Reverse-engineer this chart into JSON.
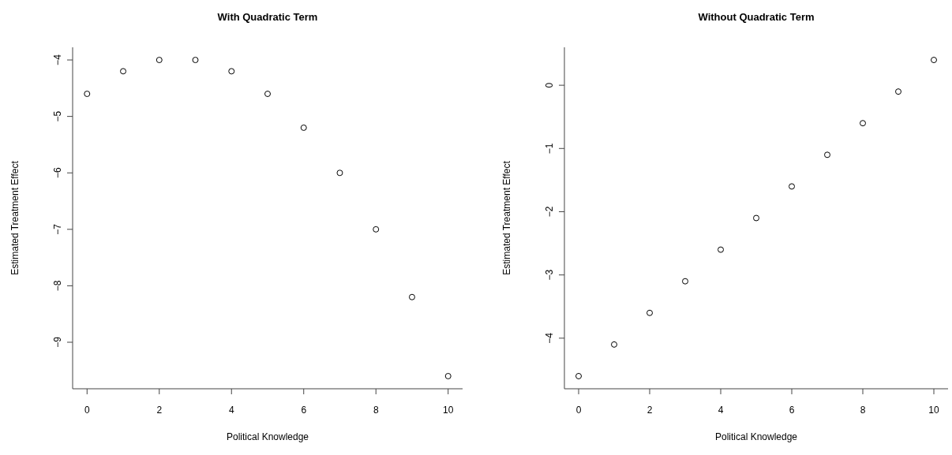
{
  "chart_data": [
    {
      "type": "scatter",
      "title": "With Quadratic Term",
      "xlabel": "Political Knowledge",
      "ylabel": "Estimated Treatment Effect",
      "x": [
        0,
        1,
        2,
        3,
        4,
        5,
        6,
        7,
        8,
        9,
        10
      ],
      "values": [
        -4.6,
        -4.2,
        -4.0,
        -4.0,
        -4.2,
        -4.6,
        -5.2,
        -6.0,
        -7.0,
        -8.2,
        -9.6
      ],
      "color": "#000000",
      "marker": "circle",
      "xlim": [
        -0.4,
        10.4
      ],
      "ylim": [
        -9.824,
        -3.776
      ],
      "xticks": [
        0,
        2,
        4,
        6,
        8,
        10
      ],
      "yticks": [
        -9,
        -8,
        -7,
        -6,
        -5,
        -4
      ]
    },
    {
      "type": "scatter",
      "title": "Without Quadratic Term",
      "xlabel": "Political Knowledge",
      "ylabel": "Estimated Treatment Effect",
      "x": [
        0,
        1,
        2,
        3,
        4,
        5,
        6,
        7,
        8,
        9,
        10
      ],
      "values": [
        -4.6,
        -4.1,
        -3.6,
        -3.1,
        -2.6,
        -2.1,
        -1.6,
        -1.1,
        -0.6,
        -0.1,
        0.4
      ],
      "color": "#000000",
      "marker": "circle",
      "xlim": [
        -0.4,
        10.4
      ],
      "ylim": [
        -4.8,
        0.6
      ],
      "xticks": [
        0,
        2,
        4,
        6,
        8,
        10
      ],
      "yticks": [
        -4,
        -3,
        -2,
        -1,
        0
      ]
    }
  ]
}
